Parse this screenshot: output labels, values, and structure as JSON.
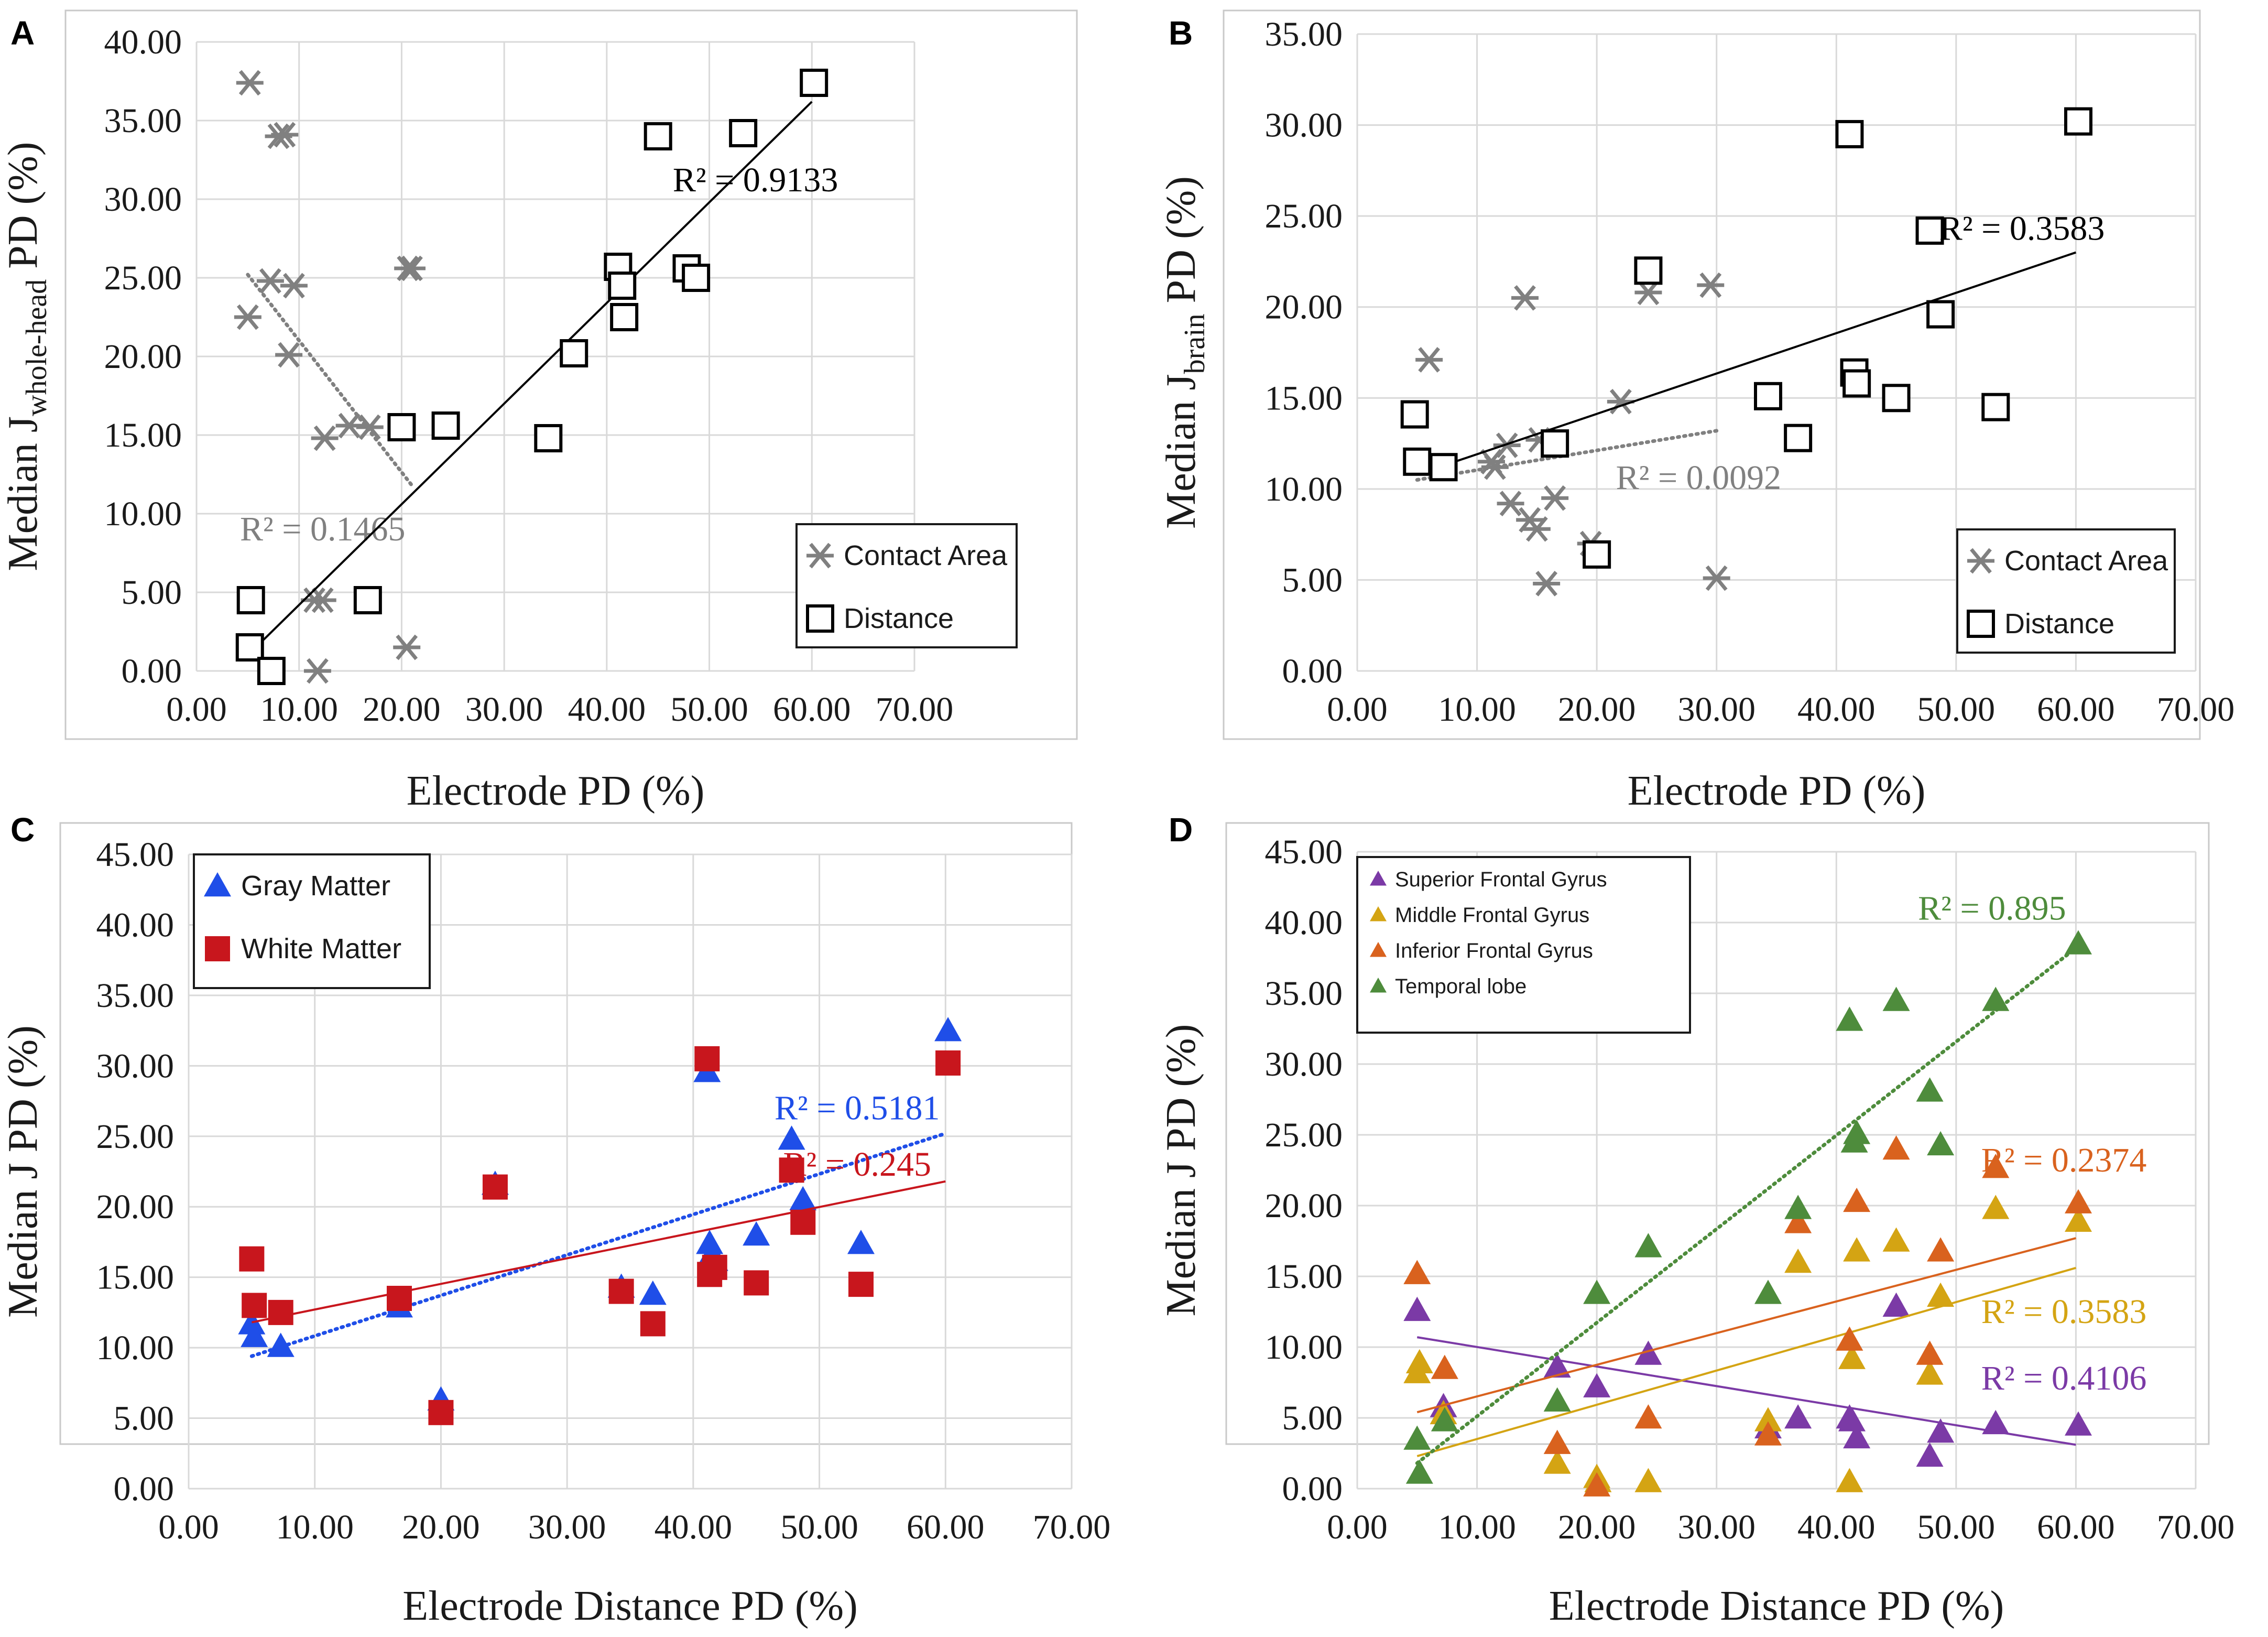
{
  "chart_data": [
    {
      "panel": "A",
      "type": "scatter",
      "xlabel": "Electrode PD (%)",
      "ylabel": "Median J",
      "ylabel_sub": "whole-head",
      "ylabel_suffix": " PD (%)",
      "xlim": [
        0,
        70
      ],
      "ylim": [
        0,
        40
      ],
      "xticks": [
        "0.00",
        "10.00",
        "20.00",
        "30.00",
        "40.00",
        "50.00",
        "60.00",
        "70.00"
      ],
      "yticks": [
        "0.00",
        "5.00",
        "10.00",
        "15.00",
        "20.00",
        "25.00",
        "30.00",
        "35.00",
        "40.00"
      ],
      "grid": true,
      "legend": "bottom-right",
      "series": [
        {
          "name": "Contact Area",
          "marker": "asterisk",
          "color": "#808080",
          "x": [
            5.2,
            5.0,
            7.2,
            8.0,
            8.6,
            9.0,
            9.5,
            11.5,
            11.8,
            12.3,
            12.5,
            14.9,
            16.9,
            20.6,
            21.0,
            20.5
          ],
          "y": [
            37.4,
            22.5,
            24.8,
            34.0,
            34.1,
            20.1,
            24.5,
            4.5,
            0.0,
            4.5,
            14.8,
            15.6,
            15.5,
            25.6,
            25.6,
            1.5
          ],
          "trend": {
            "style": "dotted",
            "x0": 5.0,
            "y0": 25.2,
            "x1": 21.0,
            "y1": 11.8,
            "label": "R² = 0.1465",
            "label_x": 12.3,
            "label_y": 8.3,
            "label_color": "#808080"
          }
        },
        {
          "name": "Distance",
          "marker": "open-square",
          "color": "#000000",
          "x": [
            5.2,
            5.3,
            7.3,
            16.7,
            20.0,
            24.3,
            34.3,
            36.8,
            41.1,
            41.5,
            41.7,
            45.0,
            47.8,
            48.7,
            53.3,
            60.2
          ],
          "y": [
            1.5,
            4.5,
            0.0,
            4.5,
            15.5,
            15.6,
            14.8,
            20.2,
            25.7,
            24.5,
            22.5,
            34.0,
            25.6,
            25.0,
            34.2,
            37.4
          ],
          "trend": {
            "style": "solid",
            "x0": 5.0,
            "y0": 1.0,
            "x1": 60.0,
            "y1": 36.2,
            "label": "R² = 0.9133",
            "label_x": 54.5,
            "label_y": 30.5,
            "label_color": "#000000"
          }
        }
      ]
    },
    {
      "panel": "B",
      "type": "scatter",
      "xlabel": "Electrode PD (%)",
      "ylabel": "Median J",
      "ylabel_sub": "brain",
      "ylabel_suffix": " PD (%)",
      "xlim": [
        0,
        70
      ],
      "ylim": [
        0,
        35
      ],
      "xticks": [
        "0.00",
        "10.00",
        "20.00",
        "30.00",
        "40.00",
        "50.00",
        "60.00",
        "70.00"
      ],
      "yticks": [
        "0.00",
        "5.00",
        "10.00",
        "15.00",
        "20.00",
        "25.00",
        "30.00",
        "35.00"
      ],
      "grid": true,
      "legend": "bottom-right",
      "series": [
        {
          "name": "Contact Area",
          "marker": "asterisk",
          "color": "#808080",
          "x": [
            6.0,
            11.2,
            11.5,
            12.5,
            12.8,
            14.0,
            14.4,
            15.0,
            15.2,
            15.8,
            16.5,
            19.5,
            22.0,
            24.3,
            29.5,
            30.0
          ],
          "y": [
            17.1,
            11.5,
            11.2,
            12.4,
            9.2,
            20.5,
            8.3,
            7.8,
            12.7,
            4.8,
            9.5,
            7.0,
            14.8,
            20.8,
            21.2,
            5.1
          ],
          "trend": {
            "style": "dotted",
            "x0": 5.0,
            "y0": 10.5,
            "x1": 30.0,
            "y1": 13.2,
            "label": "R² = 0.0092",
            "label_x": 28.5,
            "label_y": 10.0,
            "label_color": "#808080"
          }
        },
        {
          "name": "Distance",
          "marker": "open-square",
          "color": "#000000",
          "x": [
            4.8,
            5.0,
            7.2,
            16.5,
            20.0,
            24.3,
            34.3,
            36.8,
            41.1,
            41.5,
            41.7,
            45.0,
            47.8,
            48.7,
            53.3,
            60.2
          ],
          "y": [
            14.1,
            11.5,
            11.2,
            12.5,
            6.4,
            22.0,
            15.1,
            12.8,
            29.5,
            16.4,
            15.8,
            15.0,
            24.2,
            19.6,
            14.5,
            30.2
          ],
          "trend": {
            "style": "solid",
            "x0": 5.0,
            "y0": 10.8,
            "x1": 60.0,
            "y1": 23.0,
            "label": "R² = 0.3583",
            "label_x": 55.5,
            "label_y": 23.7,
            "label_color": "#000000"
          }
        }
      ]
    },
    {
      "panel": "C",
      "type": "scatter",
      "xlabel": "Electrode Distance PD (%)",
      "ylabel": "Median J PD (%)",
      "ylabel_sub": "",
      "ylabel_suffix": "",
      "xlim": [
        0,
        70
      ],
      "ylim": [
        0,
        45
      ],
      "xticks": [
        "0.00",
        "10.00",
        "20.00",
        "30.00",
        "40.00",
        "50.00",
        "60.00",
        "70.00"
      ],
      "yticks": [
        "0.00",
        "5.00",
        "10.00",
        "15.00",
        "20.00",
        "25.00",
        "30.00",
        "35.00",
        "40.00",
        "45.00"
      ],
      "grid": true,
      "legend": "top-left",
      "series": [
        {
          "name": "Gray Matter",
          "marker": "filled-triangle",
          "color": "#1f4ee8",
          "x": [
            5.0,
            5.2,
            7.3,
            16.7,
            20.0,
            24.3,
            34.3,
            36.8,
            41.1,
            41.3,
            41.5,
            41.7,
            45.0,
            47.8,
            48.7,
            53.3,
            60.2
          ],
          "y": [
            11.7,
            10.8,
            10.1,
            12.9,
            6.3,
            21.6,
            14.3,
            13.8,
            29.6,
            17.4,
            16.7,
            16.2,
            18.0,
            24.8,
            20.5,
            17.4,
            32.5
          ],
          "trend": {
            "style": "dotted",
            "x0": 5.0,
            "y0": 9.4,
            "x1": 60.0,
            "y1": 25.2,
            "label": "R² = 0.5181",
            "label_x": 53.0,
            "label_y": 26.2,
            "label_color": "#1f4ee8"
          }
        },
        {
          "name": "White Matter",
          "marker": "filled-square",
          "color": "#c8161d",
          "x": [
            5.0,
            5.2,
            7.3,
            16.7,
            20.0,
            24.3,
            34.3,
            36.8,
            41.1,
            41.3,
            41.7,
            45.0,
            47.8,
            48.7,
            53.3,
            60.2
          ],
          "y": [
            16.3,
            13.0,
            12.5,
            13.5,
            5.4,
            21.4,
            14.0,
            11.7,
            30.5,
            15.2,
            15.7,
            14.6,
            22.6,
            18.9,
            14.5,
            30.2
          ],
          "trend": {
            "style": "solid",
            "x0": 5.0,
            "y0": 11.8,
            "x1": 60.0,
            "y1": 21.8,
            "label": "R² = 0.245",
            "label_x": 53.0,
            "label_y": 22.2,
            "label_color": "#c8161d"
          }
        }
      ]
    },
    {
      "panel": "D",
      "type": "scatter",
      "xlabel": "Electrode Distance PD (%)",
      "ylabel": "Median J PD (%)",
      "ylabel_sub": "",
      "ylabel_suffix": "",
      "xlim": [
        0,
        70
      ],
      "ylim": [
        0,
        45
      ],
      "xticks": [
        "0.00",
        "10.00",
        "20.00",
        "30.00",
        "40.00",
        "50.00",
        "60.00",
        "70.00"
      ],
      "yticks": [
        "0.00",
        "5.00",
        "10.00",
        "15.00",
        "20.00",
        "25.00",
        "30.00",
        "35.00",
        "40.00",
        "45.00"
      ],
      "grid": true,
      "legend": "top-left",
      "series": [
        {
          "name": "Superior Frontal Gyrus",
          "marker": "filled-triangle",
          "color": "#7b3aa6",
          "x": [
            5.0,
            7.2,
            16.7,
            20.0,
            24.3,
            34.3,
            36.8,
            41.1,
            41.3,
            41.7,
            45.0,
            47.8,
            48.7,
            53.3,
            60.2
          ],
          "y": [
            12.6,
            5.8,
            8.6,
            7.2,
            9.5,
            4.3,
            5.0,
            5.0,
            4.8,
            3.6,
            12.9,
            2.3,
            4.0,
            4.6,
            4.5
          ],
          "trend": {
            "style": "solid",
            "x0": 5.0,
            "y0": 10.7,
            "x1": 60.0,
            "y1": 3.1,
            "label": "R² = 0.4106",
            "label_x": 59.0,
            "label_y": 7.0,
            "label_color": "#7b3aa6"
          }
        },
        {
          "name": "Middle Frontal Gyrus",
          "marker": "filled-triangle",
          "color": "#d4a413",
          "x": [
            5.0,
            5.2,
            7.2,
            16.7,
            20.0,
            20.1,
            24.3,
            34.3,
            36.8,
            41.1,
            41.3,
            41.7,
            45.0,
            47.8,
            48.7,
            53.3,
            60.2
          ],
          "y": [
            8.2,
            8.9,
            5.3,
            1.8,
            0.8,
            0.5,
            0.5,
            4.8,
            16.0,
            0.5,
            9.2,
            16.8,
            17.5,
            8.1,
            13.6,
            19.8,
            18.9
          ],
          "trend": {
            "style": "solid",
            "x0": 5.0,
            "y0": 2.3,
            "x1": 60.0,
            "y1": 15.6,
            "label": "R² = 0.3583",
            "label_x": 59.0,
            "label_y": 11.7,
            "label_color": "#d4a413"
          }
        },
        {
          "name": "Inferior Frontal Gyrus",
          "marker": "filled-triangle",
          "color": "#d9621e",
          "x": [
            5.0,
            7.3,
            16.7,
            20.0,
            24.3,
            34.3,
            36.8,
            41.1,
            41.7,
            45.0,
            47.8,
            48.7,
            53.3,
            60.2
          ],
          "y": [
            15.2,
            8.5,
            3.2,
            0.2,
            5.0,
            3.8,
            18.8,
            10.5,
            20.3,
            24.0,
            9.5,
            16.8,
            22.7,
            20.2
          ],
          "trend": {
            "style": "solid",
            "x0": 5.0,
            "y0": 5.4,
            "x1": 60.0,
            "y1": 17.7,
            "label": "R² = 0.2374",
            "label_x": 59.0,
            "label_y": 22.4,
            "label_color": "#d9621e"
          }
        },
        {
          "name": "Temporal lobe",
          "marker": "filled-triangle",
          "color": "#4e8c3c",
          "x": [
            5.0,
            5.2,
            7.3,
            16.7,
            20.0,
            24.3,
            34.3,
            36.8,
            41.1,
            41.5,
            41.7,
            45.0,
            47.8,
            48.7,
            53.3,
            60.2
          ],
          "y": [
            3.5,
            1.1,
            4.8,
            6.2,
            13.8,
            17.1,
            13.8,
            19.8,
            33.1,
            24.5,
            25.1,
            34.5,
            28.1,
            24.3,
            34.5,
            38.5
          ],
          "trend": {
            "style": "dotted",
            "x0": 5.0,
            "y0": 1.8,
            "x1": 60.0,
            "y1": 38.2,
            "label": "R² = 0.895",
            "label_x": 53.0,
            "label_y": 40.2,
            "label_color": "#4e8c3c"
          }
        }
      ]
    }
  ]
}
